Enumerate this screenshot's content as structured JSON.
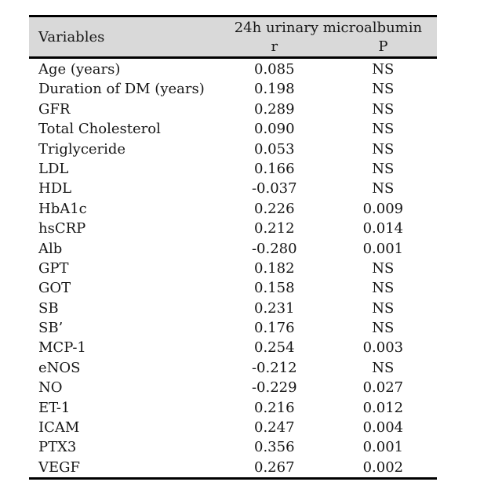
{
  "table": {
    "colors": {
      "header_bg": "#d9d9d9",
      "border": "#000000",
      "text": "#161616"
    },
    "header": {
      "variables_label": "Variables",
      "group_label": "24h urinary microalbumin",
      "col_r_label": "r",
      "col_p_label": "P"
    },
    "rows": [
      {
        "variable": "Age (years)",
        "r": "0.085",
        "p": "NS"
      },
      {
        "variable": "Duration of DM (years)",
        "r": "0.198",
        "p": "NS"
      },
      {
        "variable": "GFR",
        "r": "0.289",
        "p": "NS"
      },
      {
        "variable": "Total Cholesterol",
        "r": "0.090",
        "p": "NS"
      },
      {
        "variable": "Triglyceride",
        "r": "0.053",
        "p": "NS"
      },
      {
        "variable": "LDL",
        "r": "0.166",
        "p": "NS"
      },
      {
        "variable": "HDL",
        "r": "-0.037",
        "p": "NS"
      },
      {
        "variable": "HbA1c",
        "r": "0.226",
        "p": "0.009"
      },
      {
        "variable": "hsCRP",
        "r": "0.212",
        "p": "0.014"
      },
      {
        "variable": "Alb",
        "r": "-0.280",
        "p": "0.001"
      },
      {
        "variable": "GPT",
        "r": "0.182",
        "p": "NS"
      },
      {
        "variable": "GOT",
        "r": "0.158",
        "p": "NS"
      },
      {
        "variable": "SB",
        "r": "0.231",
        "p": "NS"
      },
      {
        "variable": "SB’",
        "r": "0.176",
        "p": "NS"
      },
      {
        "variable": "MCP-1",
        "r": "0.254",
        "p": "0.003"
      },
      {
        "variable": "eNOS",
        "r": "-0.212",
        "p": "NS"
      },
      {
        "variable": "NO",
        "r": "-0.229",
        "p": "0.027"
      },
      {
        "variable": "ET-1",
        "r": "0.216",
        "p": "0.012"
      },
      {
        "variable": "ICAM",
        "r": "0.247",
        "p": "0.004"
      },
      {
        "variable": "PTX3",
        "r": "0.356",
        "p": "0.001"
      },
      {
        "variable": "VEGF",
        "r": "0.267",
        "p": "0.002"
      }
    ]
  }
}
